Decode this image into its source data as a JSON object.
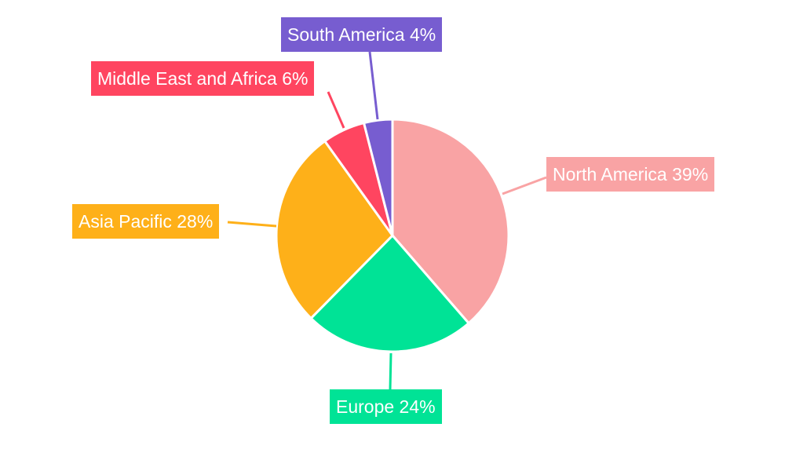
{
  "chart_data": {
    "type": "pie",
    "title": "",
    "categories": [
      "North America",
      "Europe",
      "Asia Pacific",
      "Middle East and Africa",
      "South America"
    ],
    "values": [
      39,
      24,
      28,
      6,
      4
    ],
    "unit": "%",
    "labels": [
      "North America 39%",
      "Europe 24%",
      "Asia Pacific 28%",
      "Middle East and Africa 6%",
      "South America 4%"
    ],
    "colors": [
      "#F9A3A4",
      "#00E396",
      "#FEB019",
      "#FF4560",
      "#775DD0"
    ],
    "start_angle": "top, clockwise",
    "legend": "none"
  }
}
